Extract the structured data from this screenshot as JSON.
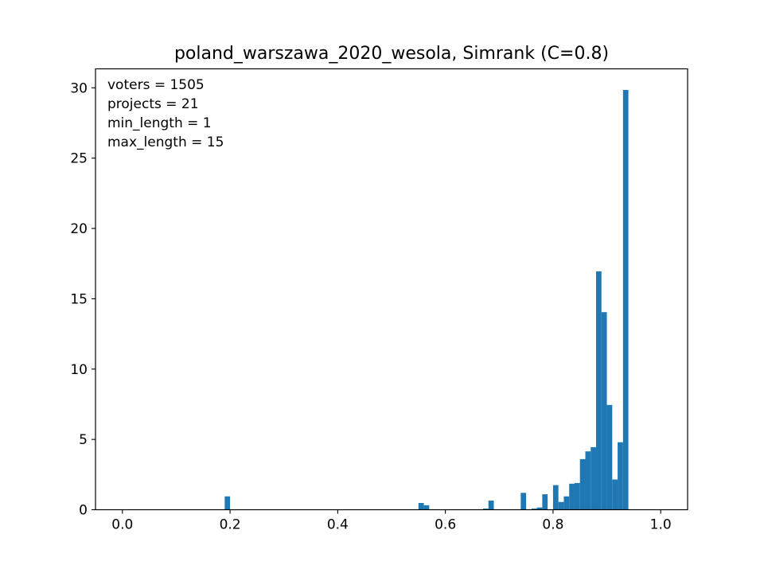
{
  "chart_data": {
    "type": "bar",
    "title": "poland_warszawa_2020_wesola, Simrank (C=0.8)",
    "xlabel": "",
    "ylabel": "",
    "xlim": [
      -0.05,
      1.05
    ],
    "ylim": [
      0,
      31.35
    ],
    "grid": false,
    "bar_color": "#1f77b4",
    "x_ticks": [
      0.0,
      0.2,
      0.4,
      0.6,
      0.8,
      1.0
    ],
    "x_tick_labels": [
      "0.0",
      "0.2",
      "0.4",
      "0.6",
      "0.8",
      "1.0"
    ],
    "y_ticks": [
      0,
      5,
      10,
      15,
      20,
      25,
      30
    ],
    "y_tick_labels": [
      "0",
      "5",
      "10",
      "15",
      "20",
      "25",
      "30"
    ],
    "annotations": [
      "voters = 1505",
      "projects = 21",
      "min_length = 1",
      "max_length = 15"
    ],
    "bin_width": 0.01,
    "bins": [
      {
        "x0": 0.19,
        "value": 0.95
      },
      {
        "x0": 0.55,
        "value": 0.48
      },
      {
        "x0": 0.56,
        "value": 0.32
      },
      {
        "x0": 0.67,
        "value": 0.08
      },
      {
        "x0": 0.68,
        "value": 0.65
      },
      {
        "x0": 0.74,
        "value": 1.2
      },
      {
        "x0": 0.76,
        "value": 0.08
      },
      {
        "x0": 0.77,
        "value": 0.16
      },
      {
        "x0": 0.78,
        "value": 1.1
      },
      {
        "x0": 0.8,
        "value": 1.75
      },
      {
        "x0": 0.81,
        "value": 0.55
      },
      {
        "x0": 0.82,
        "value": 0.95
      },
      {
        "x0": 0.83,
        "value": 1.85
      },
      {
        "x0": 0.84,
        "value": 1.9
      },
      {
        "x0": 0.85,
        "value": 3.6
      },
      {
        "x0": 0.86,
        "value": 4.15
      },
      {
        "x0": 0.87,
        "value": 4.45
      },
      {
        "x0": 0.88,
        "value": 16.95
      },
      {
        "x0": 0.89,
        "value": 14.05
      },
      {
        "x0": 0.9,
        "value": 7.45
      },
      {
        "x0": 0.91,
        "value": 2.15
      },
      {
        "x0": 0.92,
        "value": 4.8
      },
      {
        "x0": 0.93,
        "value": 29.85
      }
    ]
  }
}
